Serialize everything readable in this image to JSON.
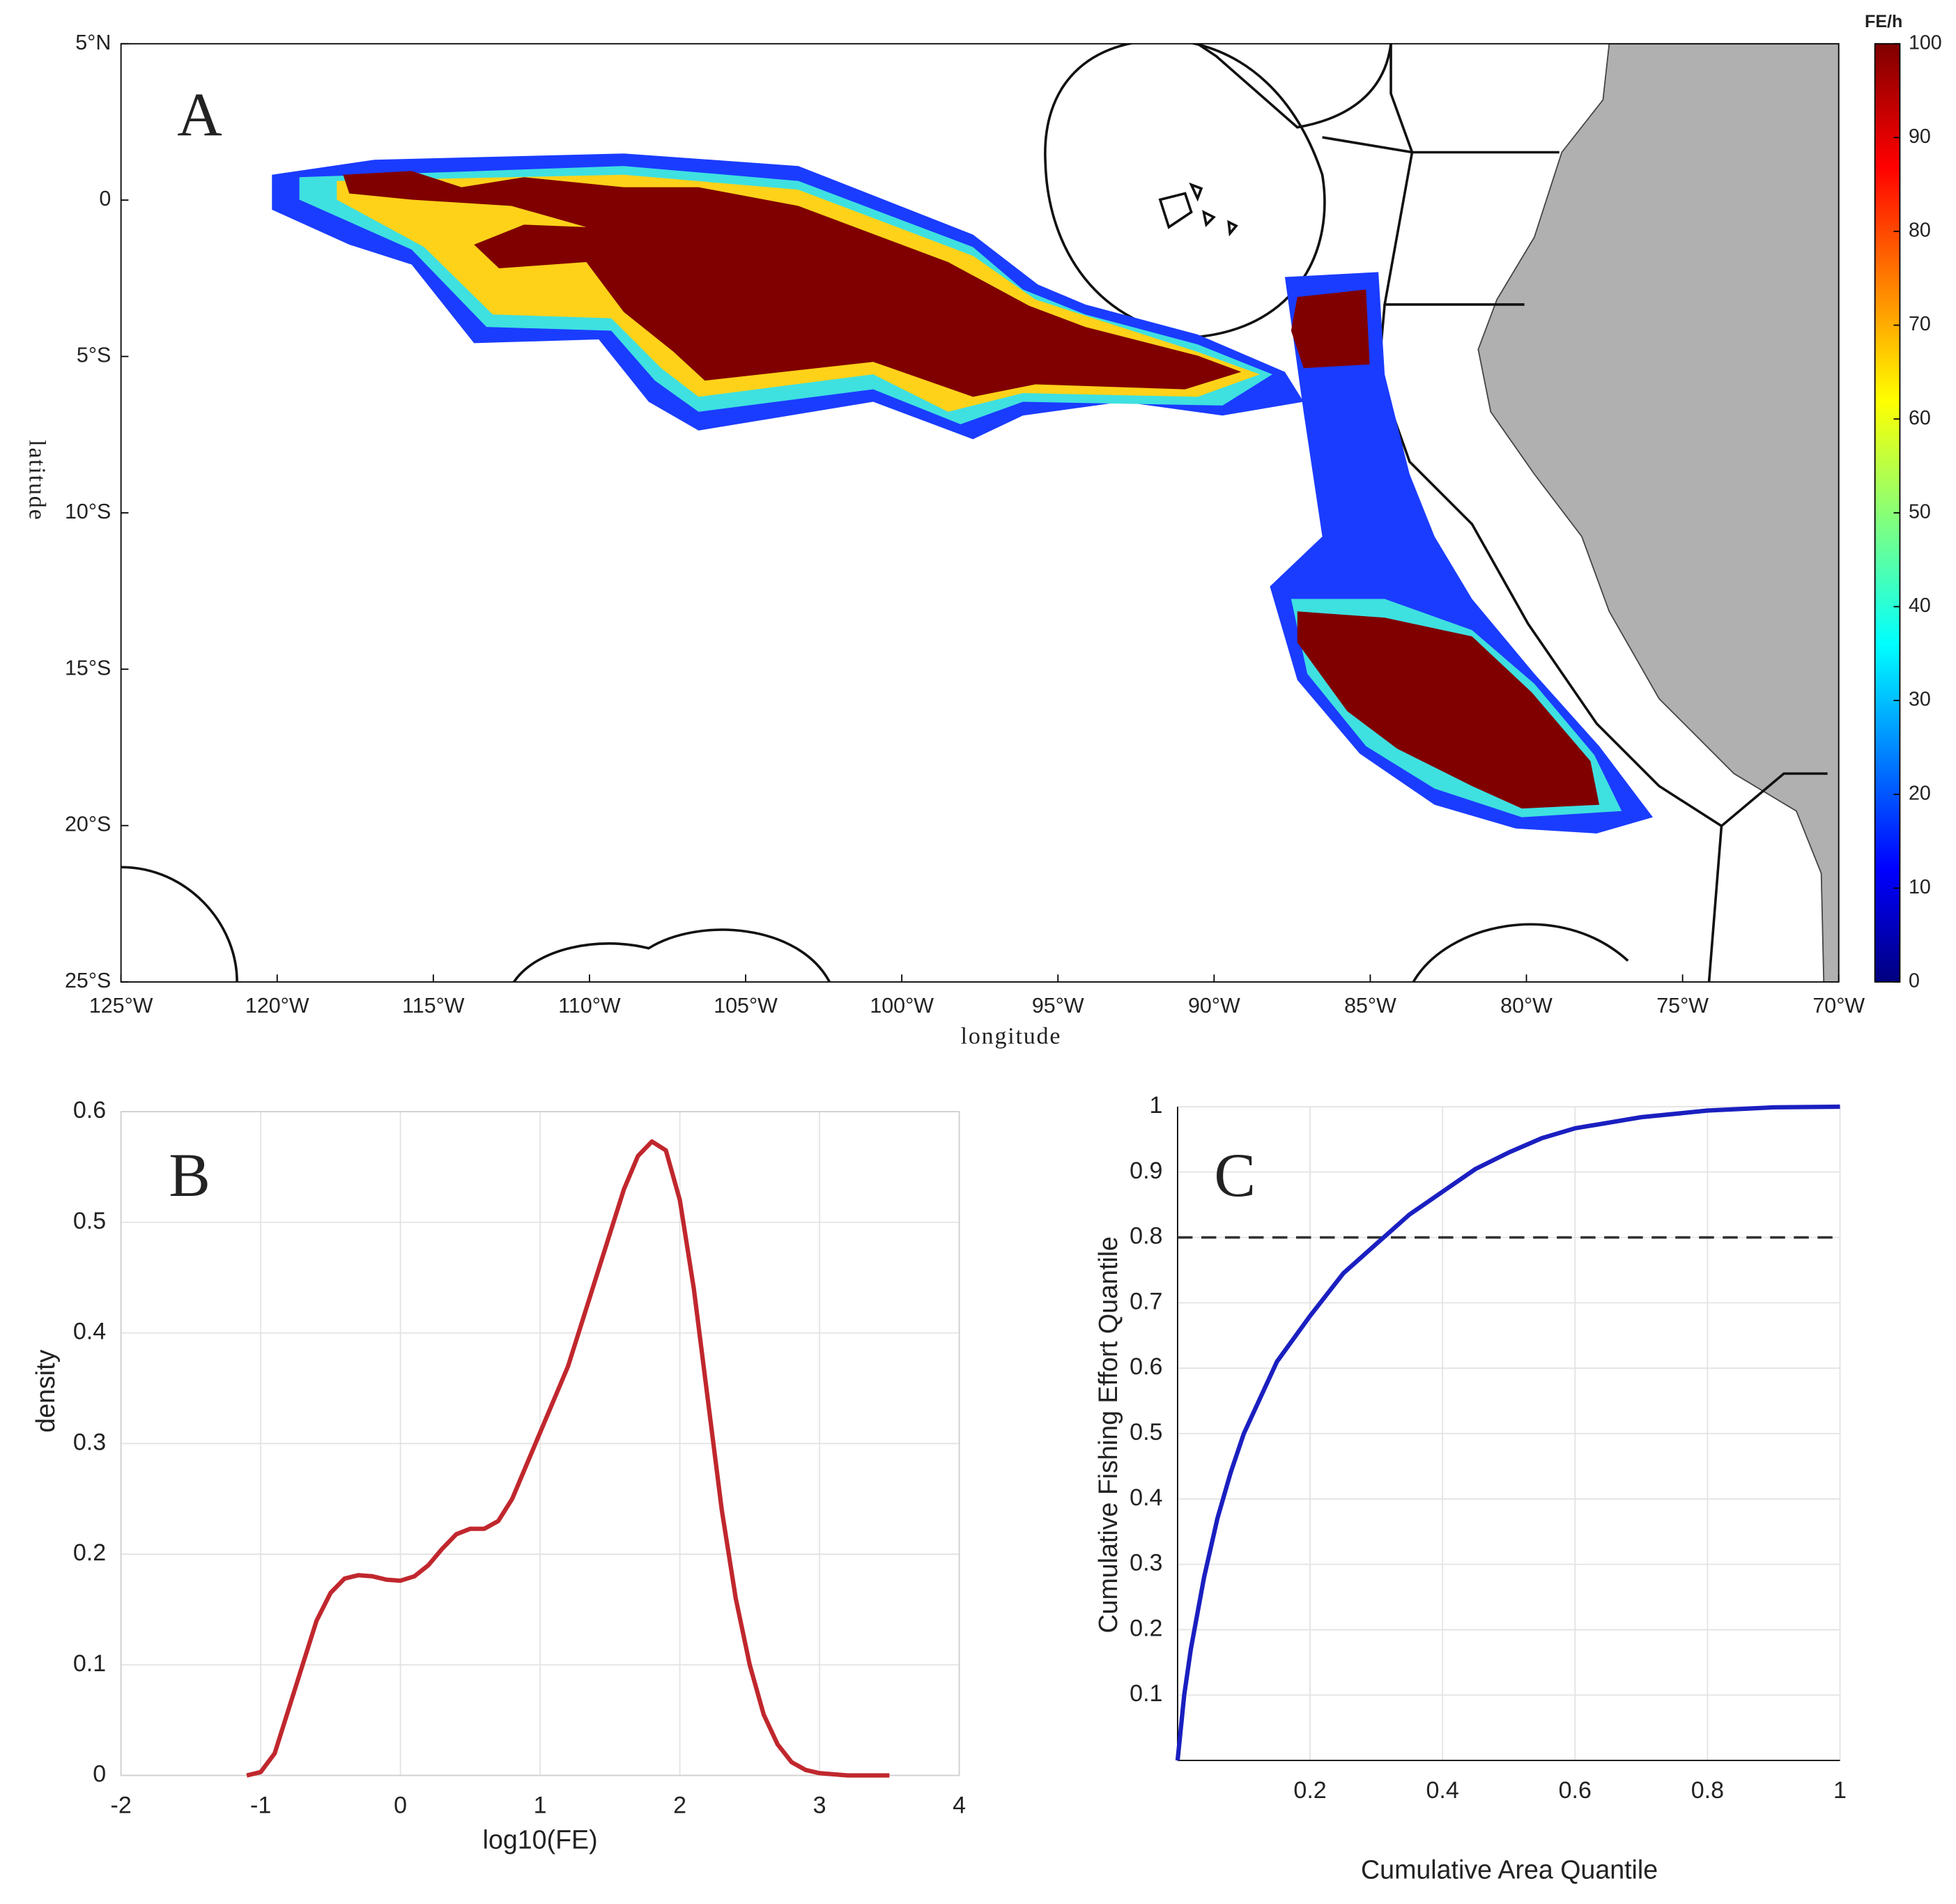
{
  "chart_data": [
    {
      "type": "map",
      "panel": "A",
      "xlabel": "longitude",
      "ylabel": "latitude",
      "xlim": [
        -125,
        -70
      ],
      "xticks": [
        {
          "value": -125,
          "label": "125°W"
        },
        {
          "value": -120,
          "label": "120°W"
        },
        {
          "value": -115,
          "label": "115°W"
        },
        {
          "value": -110,
          "label": "110°W"
        },
        {
          "value": -105,
          "label": "105°W"
        },
        {
          "value": -100,
          "label": "100°W"
        },
        {
          "value": -95,
          "label": "95°W"
        },
        {
          "value": -90,
          "label": "90°W"
        },
        {
          "value": -85,
          "label": "85°W"
        },
        {
          "value": -80,
          "label": "80°W"
        },
        {
          "value": -75,
          "label": "75°W"
        },
        {
          "value": -70,
          "label": "70°W"
        }
      ],
      "ylim": [
        -25,
        5
      ],
      "yticks": [
        {
          "value": 5,
          "label": "5°N"
        },
        0,
        {
          "value": -5,
          "label": "5°S"
        },
        {
          "value": -10,
          "label": "10°S"
        },
        {
          "value": -15,
          "label": "15°S"
        },
        {
          "value": -20,
          "label": "20°S"
        },
        {
          "value": -25,
          "label": "25°S"
        }
      ],
      "colorbar": {
        "label": "FE/h",
        "lim": [
          0,
          100
        ],
        "ticks": [
          0,
          10,
          20,
          30,
          40,
          50,
          60,
          70,
          80,
          90,
          100
        ],
        "colormap": "jet"
      }
    },
    {
      "type": "line",
      "panel": "B",
      "xlabel": "log10(FE)",
      "ylabel": "density",
      "color": "#c0272d",
      "grid": true,
      "xlim": [
        -2,
        4
      ],
      "xticks": [
        -2,
        -1,
        0,
        1,
        2,
        3,
        4
      ],
      "ylim": [
        0,
        0.6
      ],
      "yticks": [
        0,
        0.1,
        0.2,
        0.3,
        0.4,
        0.5,
        0.6
      ],
      "x": [
        -1.1,
        -1.0,
        -0.9,
        -0.8,
        -0.7,
        -0.6,
        -0.5,
        -0.4,
        -0.3,
        -0.2,
        -0.1,
        0,
        0.1,
        0.2,
        0.3,
        0.4,
        0.5,
        0.6,
        0.7,
        0.8,
        0.9,
        1.0,
        1.1,
        1.2,
        1.3,
        1.4,
        1.5,
        1.6,
        1.7,
        1.8,
        1.9,
        2.0,
        2.1,
        2.2,
        2.3,
        2.4,
        2.5,
        2.6,
        2.7,
        2.8,
        2.9,
        3.0,
        3.2,
        3.5
      ],
      "values": [
        0,
        0.003,
        0.02,
        0.06,
        0.1,
        0.14,
        0.165,
        0.178,
        0.181,
        0.18,
        0.177,
        0.176,
        0.18,
        0.19,
        0.205,
        0.218,
        0.223,
        0.223,
        0.23,
        0.25,
        0.28,
        0.31,
        0.34,
        0.37,
        0.41,
        0.45,
        0.49,
        0.53,
        0.56,
        0.573,
        0.565,
        0.52,
        0.44,
        0.34,
        0.24,
        0.16,
        0.1,
        0.055,
        0.028,
        0.012,
        0.005,
        0.002,
        0,
        0
      ]
    },
    {
      "type": "line",
      "panel": "C",
      "xlabel": "Cumulative Area Quantile",
      "ylabel": "Cumulative Fishing Effort Quantile",
      "color": "#1a1fc0",
      "grid": true,
      "xlim": [
        0,
        1
      ],
      "xticks": [
        0.2,
        0.4,
        0.6,
        0.8,
        1
      ],
      "ylim": [
        0,
        1
      ],
      "yticks": [
        0.1,
        0.2,
        0.3,
        0.4,
        0.5,
        0.6,
        0.7,
        0.8,
        0.9,
        1
      ],
      "reference_line": 0.8,
      "x": [
        0,
        0.01,
        0.02,
        0.04,
        0.06,
        0.08,
        0.1,
        0.15,
        0.2,
        0.25,
        0.3,
        0.35,
        0.4,
        0.45,
        0.5,
        0.55,
        0.6,
        0.7,
        0.8,
        0.9,
        1.0
      ],
      "values": [
        0,
        0.1,
        0.17,
        0.28,
        0.37,
        0.44,
        0.5,
        0.61,
        0.68,
        0.745,
        0.79,
        0.835,
        0.87,
        0.905,
        0.93,
        0.952,
        0.967,
        0.984,
        0.994,
        0.999,
        1.0
      ]
    }
  ]
}
